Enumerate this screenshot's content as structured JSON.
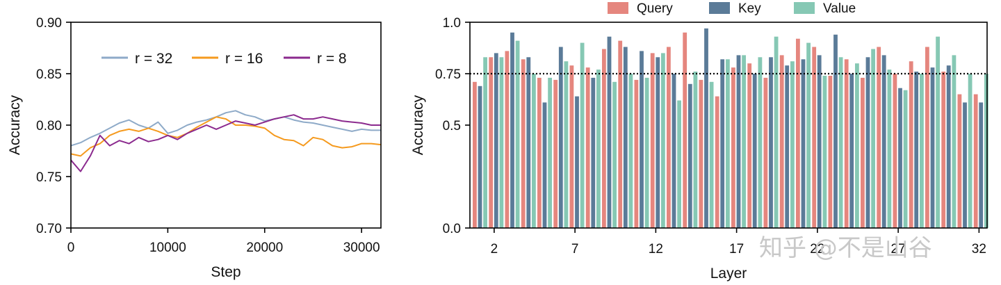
{
  "watermark": "知乎 @不是山谷",
  "chart_data": [
    {
      "type": "line",
      "xlabel": "Step",
      "ylabel": "Accuracy",
      "xlim": [
        0,
        32000
      ],
      "ylim": [
        0.7,
        0.9
      ],
      "xticks": [
        0,
        10000,
        20000,
        30000
      ],
      "xtick_labels": [
        "0",
        "10000",
        "20000",
        "30000"
      ],
      "yticks": [
        0.7,
        0.75,
        0.8,
        0.85,
        0.9
      ],
      "ytick_labels": [
        "0.70",
        "0.75",
        "0.80",
        "0.85",
        "0.90"
      ],
      "grid": false,
      "legend_position": "top",
      "series": [
        {
          "name": "r = 32",
          "color": "#8eaac8",
          "x": [
            0,
            1000,
            2000,
            3000,
            4000,
            5000,
            6000,
            7000,
            8000,
            9000,
            10000,
            11000,
            12000,
            13000,
            14000,
            15000,
            16000,
            17000,
            18000,
            19000,
            20000,
            21000,
            22000,
            23000,
            24000,
            25000,
            26000,
            27000,
            28000,
            29000,
            30000,
            31000,
            32000
          ],
          "values": [
            0.78,
            0.783,
            0.788,
            0.792,
            0.797,
            0.802,
            0.805,
            0.8,
            0.797,
            0.803,
            0.792,
            0.795,
            0.8,
            0.803,
            0.805,
            0.808,
            0.812,
            0.814,
            0.81,
            0.808,
            0.804,
            0.806,
            0.808,
            0.805,
            0.803,
            0.802,
            0.8,
            0.798,
            0.796,
            0.794,
            0.796,
            0.795,
            0.795
          ]
        },
        {
          "name": "r = 16",
          "color": "#f59a1e",
          "x": [
            0,
            1000,
            2000,
            3000,
            4000,
            5000,
            6000,
            7000,
            8000,
            9000,
            10000,
            11000,
            12000,
            13000,
            14000,
            15000,
            16000,
            17000,
            18000,
            19000,
            20000,
            21000,
            22000,
            23000,
            24000,
            25000,
            26000,
            27000,
            28000,
            29000,
            30000,
            31000,
            32000
          ],
          "values": [
            0.772,
            0.77,
            0.778,
            0.782,
            0.79,
            0.794,
            0.796,
            0.794,
            0.797,
            0.794,
            0.79,
            0.788,
            0.792,
            0.798,
            0.803,
            0.808,
            0.806,
            0.8,
            0.8,
            0.799,
            0.797,
            0.79,
            0.786,
            0.785,
            0.78,
            0.788,
            0.786,
            0.78,
            0.778,
            0.779,
            0.782,
            0.782,
            0.781
          ]
        },
        {
          "name": "r = 8",
          "color": "#8b2a8e",
          "x": [
            0,
            1000,
            2000,
            3000,
            4000,
            5000,
            6000,
            7000,
            8000,
            9000,
            10000,
            11000,
            12000,
            13000,
            14000,
            15000,
            16000,
            17000,
            18000,
            19000,
            20000,
            21000,
            22000,
            23000,
            24000,
            25000,
            26000,
            27000,
            28000,
            29000,
            30000,
            31000,
            32000
          ],
          "values": [
            0.766,
            0.755,
            0.77,
            0.79,
            0.78,
            0.785,
            0.782,
            0.788,
            0.784,
            0.786,
            0.79,
            0.786,
            0.792,
            0.796,
            0.8,
            0.796,
            0.8,
            0.804,
            0.802,
            0.8,
            0.803,
            0.806,
            0.808,
            0.81,
            0.806,
            0.806,
            0.808,
            0.806,
            0.804,
            0.803,
            0.802,
            0.8,
            0.8
          ]
        }
      ]
    },
    {
      "type": "bar",
      "xlabel": "Layer",
      "ylabel": "Accuracy",
      "ylim": [
        0.0,
        1.0
      ],
      "yticks": [
        0.0,
        0.5,
        0.75,
        1.0
      ],
      "ytick_labels": [
        "0.0",
        "0.5",
        "0.75",
        "1.0"
      ],
      "xtick_categories": [
        2,
        7,
        12,
        17,
        22,
        27,
        32
      ],
      "xtick_labels": [
        "2",
        "7",
        "12",
        "17",
        "22",
        "27",
        "32"
      ],
      "reference_line": 0.75,
      "legend_position": "top",
      "categories": [
        "1",
        "2",
        "3",
        "4",
        "5",
        "6",
        "7",
        "8",
        "9",
        "10",
        "11",
        "12",
        "13",
        "14",
        "15",
        "16",
        "17",
        "18",
        "19",
        "20",
        "21",
        "22",
        "23",
        "24",
        "25",
        "26",
        "27",
        "28",
        "29",
        "30",
        "31",
        "32"
      ],
      "series": [
        {
          "name": "Query",
          "color": "#e5867e",
          "values": [
            0.71,
            0.83,
            0.86,
            0.82,
            0.73,
            0.72,
            0.79,
            0.78,
            0.87,
            0.91,
            0.72,
            0.85,
            0.88,
            0.95,
            0.72,
            0.64,
            0.78,
            0.8,
            0.73,
            0.84,
            0.92,
            0.88,
            0.74,
            0.82,
            0.73,
            0.88,
            0.75,
            0.81,
            0.88,
            0.76,
            0.65,
            0.65
          ]
        },
        {
          "name": "Key",
          "color": "#5b7b98",
          "values": [
            0.69,
            0.85,
            0.95,
            0.83,
            0.61,
            0.88,
            0.64,
            0.73,
            0.93,
            0.88,
            0.86,
            0.83,
            0.75,
            0.7,
            0.97,
            0.82,
            0.84,
            0.75,
            0.83,
            0.79,
            0.82,
            0.84,
            0.94,
            0.75,
            0.83,
            0.84,
            0.68,
            0.76,
            0.78,
            0.79,
            0.61,
            0.61
          ]
        },
        {
          "name": "Value",
          "color": "#86c8b4",
          "values": [
            0.83,
            0.83,
            0.91,
            0.75,
            0.73,
            0.81,
            0.9,
            0.77,
            0.71,
            0.75,
            0.73,
            0.85,
            0.62,
            0.76,
            0.71,
            0.82,
            0.84,
            0.83,
            0.93,
            0.81,
            0.9,
            0.74,
            0.83,
            0.8,
            0.87,
            0.77,
            0.67,
            0.75,
            0.93,
            0.84,
            0.75,
            0.75
          ]
        }
      ]
    }
  ]
}
